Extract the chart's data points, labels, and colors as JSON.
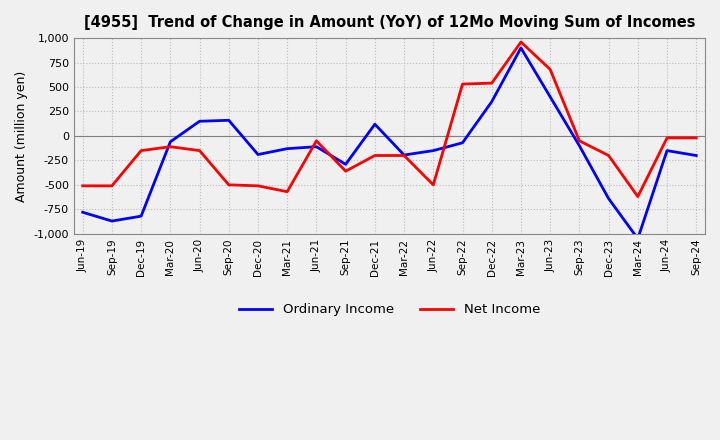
{
  "title": "[4955]  Trend of Change in Amount (YoY) of 12Mo Moving Sum of Incomes",
  "ylabel": "Amount (million yen)",
  "xlabels": [
    "Jun-19",
    "Sep-19",
    "Dec-19",
    "Mar-20",
    "Jun-20",
    "Sep-20",
    "Dec-20",
    "Mar-21",
    "Jun-21",
    "Sep-21",
    "Dec-21",
    "Mar-22",
    "Jun-22",
    "Sep-22",
    "Dec-22",
    "Mar-23",
    "Jun-23",
    "Sep-23",
    "Dec-23",
    "Mar-24",
    "Jun-24",
    "Sep-24"
  ],
  "ordinary_income": [
    -780,
    -870,
    -820,
    -60,
    150,
    160,
    -190,
    -130,
    -110,
    -290,
    120,
    -195,
    -150,
    -70,
    350,
    900,
    400,
    -100,
    -640,
    -1050,
    -150,
    -200
  ],
  "net_income": [
    -510,
    -510,
    -150,
    -110,
    -150,
    -500,
    -510,
    -570,
    -50,
    -360,
    -200,
    -200,
    -500,
    530,
    540,
    960,
    680,
    -50,
    -200,
    -620,
    -20,
    -20
  ],
  "ordinary_color": "#0000ff",
  "net_color": "#ff0000",
  "background_color": "#f0f0f0",
  "plot_bg_color": "#f0f0f0",
  "grid_color": "#bbbbbb",
  "ylim": [
    -1000,
    1000
  ],
  "yticks": [
    -1000,
    -750,
    -500,
    -250,
    0,
    250,
    500,
    750,
    1000
  ],
  "legend_labels": [
    "Ordinary Income",
    "Net Income"
  ]
}
